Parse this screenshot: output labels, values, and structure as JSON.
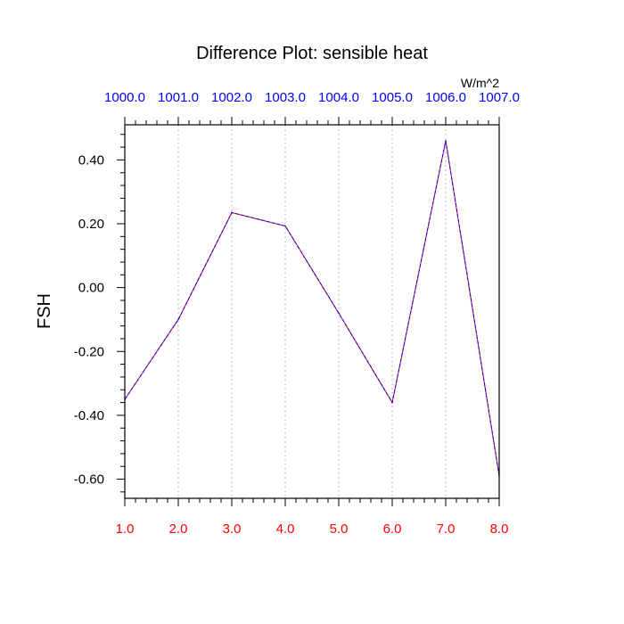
{
  "chart_data": {
    "type": "line",
    "title": "Difference Plot: sensible heat",
    "units_label": "W/m^2",
    "xlabel": "",
    "ylabel": "FSH",
    "x": [
      1,
      2,
      3,
      4,
      5,
      6,
      7,
      8
    ],
    "xlim": [
      1,
      8
    ],
    "ylim": [
      -0.66,
      0.51
    ],
    "x_tick_labels": [
      "1.0",
      "2.0",
      "3.0",
      "4.0",
      "5.0",
      "6.0",
      "7.0",
      "8.0"
    ],
    "top_tick_labels": [
      "1000.0",
      "1001.0",
      "1002.0",
      "1003.0",
      "1004.0",
      "1005.0",
      "1006.0",
      "1007.0"
    ],
    "y_ticks": [
      -0.6,
      -0.4,
      -0.2,
      0.0,
      0.2,
      0.4
    ],
    "y_tick_labels": [
      "-0.60",
      "-0.40",
      "-0.20",
      "0.00",
      "0.20",
      "0.40"
    ],
    "grid": "vertical dotted",
    "series": [
      {
        "values": [
          -0.35,
          -0.1,
          0.235,
          0.193,
          -0.08,
          -0.36,
          0.46,
          -0.59
        ],
        "colors": [
          "#ff0000",
          "#0000ff"
        ],
        "style": "dashed"
      }
    ],
    "colors": {
      "bottom_tick_labels": "#ff0000",
      "top_tick_labels": "#0000ff",
      "grid": "#bbbbbb"
    }
  }
}
